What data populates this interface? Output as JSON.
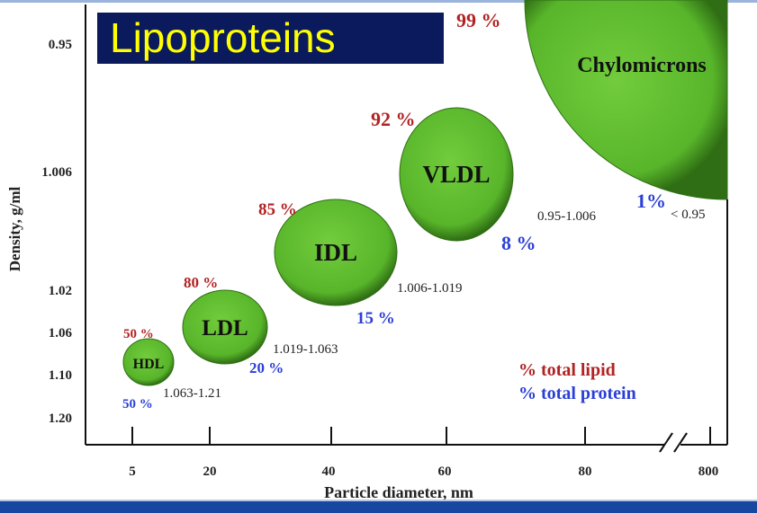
{
  "title": "Lipoproteins",
  "colors": {
    "bubble": "#5dbb2f",
    "lipid": "#b22222",
    "protein": "#2b3fd6",
    "title_bg": "#0a1a5c",
    "title_fg": "#ffff00"
  },
  "chart_data": {
    "type": "bubble",
    "xlabel": "Particle diameter, nm",
    "ylabel": "Density, g/ml",
    "x_ticks": [
      "5",
      "20",
      "40",
      "60",
      "80",
      "800"
    ],
    "y_ticks": [
      "0.95",
      "1.006",
      "1.02",
      "1.06",
      "1.10",
      "1.20"
    ],
    "legend": {
      "lipid": "% total lipid",
      "protein": "% total protein",
      "placement": "bottom-right"
    },
    "bubbles": [
      {
        "name": "HDL",
        "lipid": "50 %",
        "protein": "50 %",
        "density": "1.063-1.21"
      },
      {
        "name": "LDL",
        "lipid": "80 %",
        "protein": "20 %",
        "density": "1.019-1.063"
      },
      {
        "name": "IDL",
        "lipid": "85 %",
        "protein": "15 %",
        "density": "1.006-1.019"
      },
      {
        "name": "VLDL",
        "lipid": "92 %",
        "protein": "8 %",
        "density": "0.95-1.006"
      },
      {
        "name": "Chylomicrons",
        "lipid": "99 %",
        "protein": "1%",
        "density": "< 0.95"
      }
    ]
  }
}
